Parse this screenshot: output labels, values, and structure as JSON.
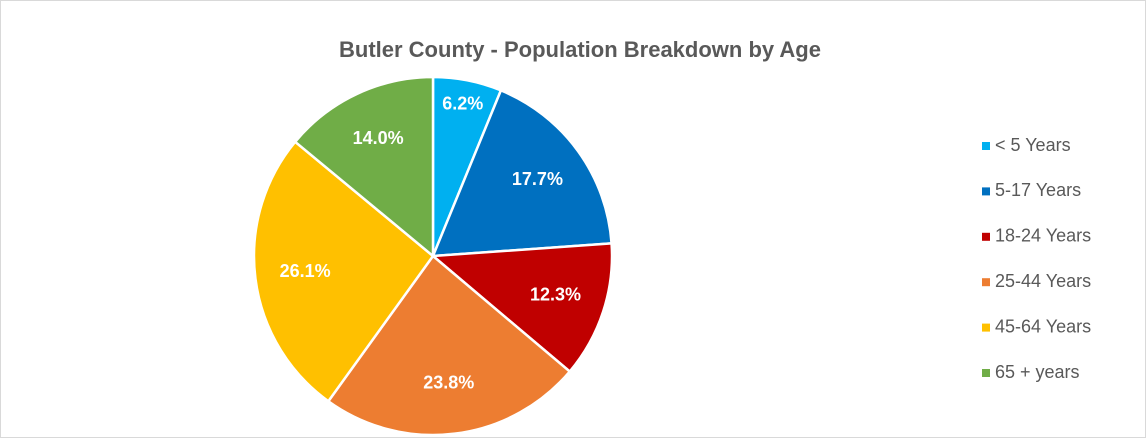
{
  "chart_data": {
    "type": "pie",
    "title": "Butler County - Population Breakdown by Age",
    "categories": [
      "< 5 Years",
      "5-17 Years",
      "18-24 Years",
      "25-44 Years",
      "45-64 Years",
      "65 + years"
    ],
    "values": [
      6.2,
      17.7,
      12.3,
      23.8,
      26.1,
      14.0
    ],
    "value_labels": [
      "6.2%",
      "17.7%",
      "12.3%",
      "23.8%",
      "26.1%",
      "14.0%"
    ],
    "colors": [
      "#00b0f0",
      "#0070c0",
      "#c00000",
      "#ed7d31",
      "#ffc000",
      "#70ad47"
    ],
    "legend": "right"
  }
}
